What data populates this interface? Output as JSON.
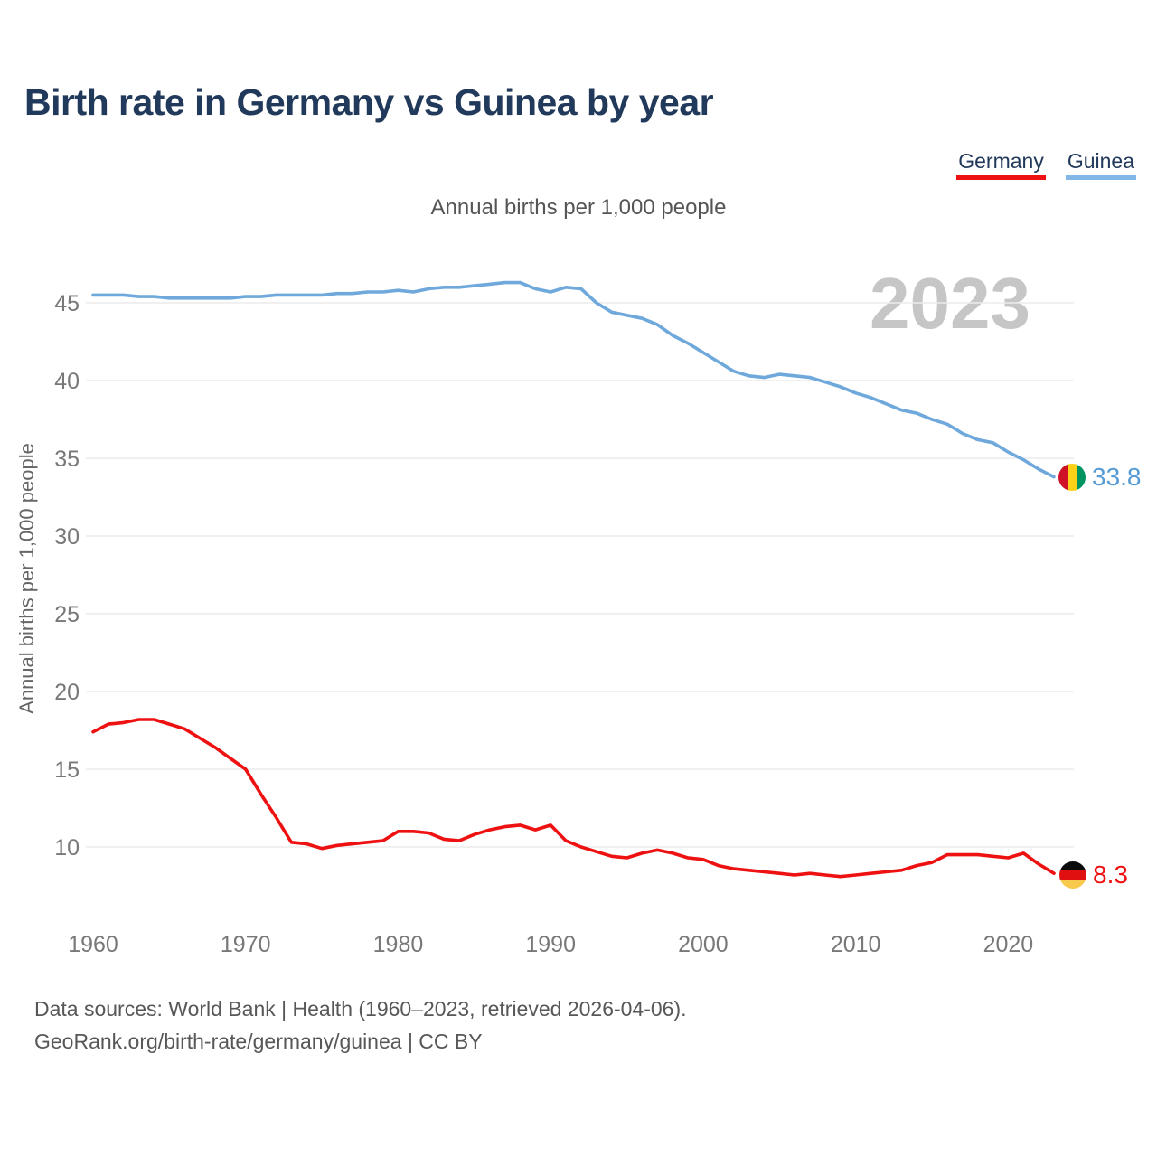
{
  "header": {
    "title": "Birth rate in Germany vs Guinea by year"
  },
  "legend": [
    {
      "label": "Germany",
      "color": "#ee1111"
    },
    {
      "label": "Guinea",
      "color": "#82b8e8"
    }
  ],
  "subtitle": "Annual births per 1,000 people",
  "watermark": "2023",
  "chart_data": {
    "type": "line",
    "title": "Birth rate in Germany vs Guinea by year",
    "subtitle": "Annual births per 1,000 people",
    "ylabel": "Annual births per 1,000 people",
    "grid": "horizontal",
    "legend_position": "top-right",
    "xlim": [
      1960,
      2023
    ],
    "ylim": [
      6,
      47.5
    ],
    "yticks": [
      45,
      40,
      35,
      30,
      25,
      20,
      15,
      10
    ],
    "xticks": [
      1960,
      1970,
      1980,
      1990,
      2000,
      2010,
      2020
    ],
    "x": [
      1960,
      1961,
      1962,
      1963,
      1964,
      1965,
      1966,
      1967,
      1968,
      1969,
      1970,
      1971,
      1972,
      1973,
      1974,
      1975,
      1976,
      1977,
      1978,
      1979,
      1980,
      1981,
      1982,
      1983,
      1984,
      1985,
      1986,
      1987,
      1988,
      1989,
      1990,
      1991,
      1992,
      1993,
      1994,
      1995,
      1996,
      1997,
      1998,
      1999,
      2000,
      2001,
      2002,
      2003,
      2004,
      2005,
      2006,
      2007,
      2008,
      2009,
      2010,
      2011,
      2012,
      2013,
      2014,
      2015,
      2016,
      2017,
      2018,
      2019,
      2020,
      2021,
      2022,
      2023
    ],
    "series": [
      {
        "name": "Guinea",
        "color": "#6fa9dc",
        "values": [
          45.5,
          45.5,
          45.5,
          45.4,
          45.4,
          45.3,
          45.3,
          45.3,
          45.3,
          45.3,
          45.4,
          45.4,
          45.5,
          45.5,
          45.5,
          45.5,
          45.6,
          45.6,
          45.7,
          45.7,
          45.8,
          45.7,
          45.9,
          46.0,
          46.0,
          46.1,
          46.2,
          46.3,
          46.3,
          45.9,
          45.7,
          46.0,
          45.9,
          45.0,
          44.4,
          44.2,
          44.0,
          43.6,
          42.9,
          42.4,
          41.8,
          41.2,
          40.6,
          40.3,
          40.2,
          40.4,
          40.3,
          40.2,
          39.9,
          39.6,
          39.2,
          38.9,
          38.5,
          38.1,
          37.9,
          37.5,
          37.2,
          36.6,
          36.2,
          36.0,
          35.4,
          34.9,
          34.3,
          33.8
        ]
      },
      {
        "name": "Germany",
        "color": "#ee1111",
        "values": [
          17.4,
          17.9,
          18.0,
          18.2,
          18.2,
          17.9,
          17.6,
          17.0,
          16.4,
          15.7,
          15.0,
          13.4,
          11.9,
          10.3,
          10.2,
          9.9,
          10.1,
          10.2,
          10.3,
          10.4,
          11.0,
          11.0,
          10.9,
          10.5,
          10.4,
          10.8,
          11.1,
          11.3,
          11.4,
          11.1,
          11.4,
          10.4,
          10.0,
          9.7,
          9.4,
          9.3,
          9.6,
          9.8,
          9.6,
          9.3,
          9.2,
          8.8,
          8.6,
          8.5,
          8.4,
          8.3,
          8.2,
          8.3,
          8.2,
          8.1,
          8.2,
          8.3,
          8.4,
          8.5,
          8.8,
          9.0,
          9.5,
          9.5,
          9.5,
          9.4,
          9.3,
          9.6,
          8.9,
          8.3
        ]
      }
    ],
    "end_labels": [
      {
        "series": "Guinea",
        "value": "33.8",
        "flag": "guinea-flag"
      },
      {
        "series": "Germany",
        "value": "8.3",
        "flag": "germany-flag"
      }
    ]
  },
  "footer": {
    "line1": "Data sources: World Bank | Health (1960–2023, retrieved 2026-04-06).",
    "line2": "GeoRank.org/birth-rate/germany/guinea | CC BY"
  }
}
